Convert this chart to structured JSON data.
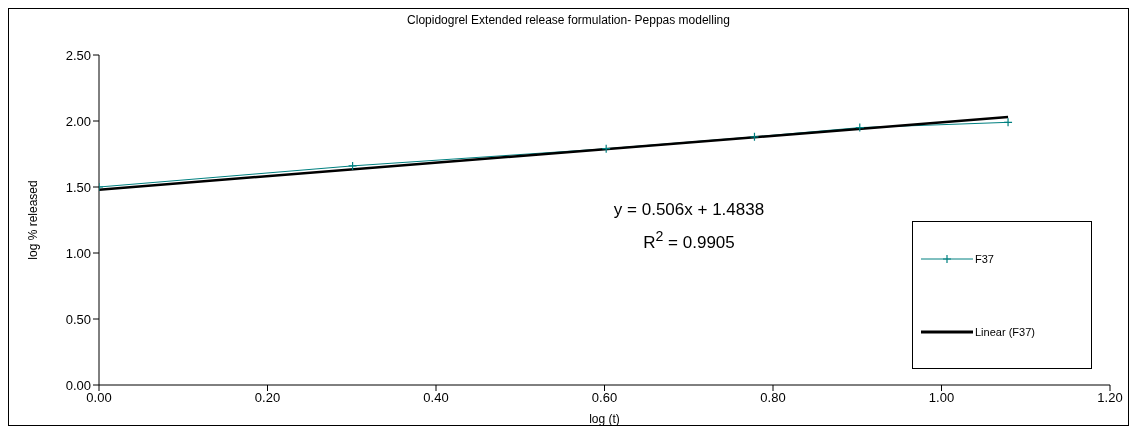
{
  "chart_data": {
    "type": "line",
    "title": "Clopidogrel Extended release formulation- Peppas modelling",
    "xlabel": "log (t)",
    "ylabel": "log % released",
    "series": [
      {
        "name": "F37",
        "color": "#008080",
        "x": [
          0,
          0.301,
          0.602,
          0.778,
          0.903,
          1.079
        ],
        "values": [
          1.5,
          1.66,
          1.79,
          1.88,
          1.95,
          1.99
        ],
        "marker": "cross"
      },
      {
        "name": "Linear (F37)",
        "type": "line",
        "color": "#000000",
        "x": [
          0,
          1.079
        ],
        "values": [
          1.48,
          2.03
        ],
        "marker": "none"
      }
    ],
    "xlim": [
      0,
      1.2
    ],
    "xticks": [
      {
        "value": 0,
        "label": "0.00"
      },
      {
        "value": 0.2,
        "label": "0.20"
      },
      {
        "value": 0.4,
        "label": "0.40"
      },
      {
        "value": 0.6,
        "label": "0.60"
      },
      {
        "value": 0.8,
        "label": "0.80"
      },
      {
        "value": 1,
        "label": "1.00"
      },
      {
        "value": 1.2,
        "label": "1.20"
      }
    ],
    "ylim": [
      0,
      2.5
    ],
    "yticks": [
      {
        "value": 0,
        "label": "0.00"
      },
      {
        "value": 0.5,
        "label": "0.50"
      },
      {
        "value": 1,
        "label": "1.00"
      },
      {
        "value": 1.5,
        "label": "1.50"
      },
      {
        "value": 2,
        "label": "2.00"
      },
      {
        "value": 2.5,
        "label": "2.50"
      }
    ],
    "annotations": [
      "y = 0.506x + 1.4838",
      "R$^{2}$ = 0.9905"
    ],
    "grid": false,
    "legend": "bottom right",
    "line_style": "solid"
  }
}
